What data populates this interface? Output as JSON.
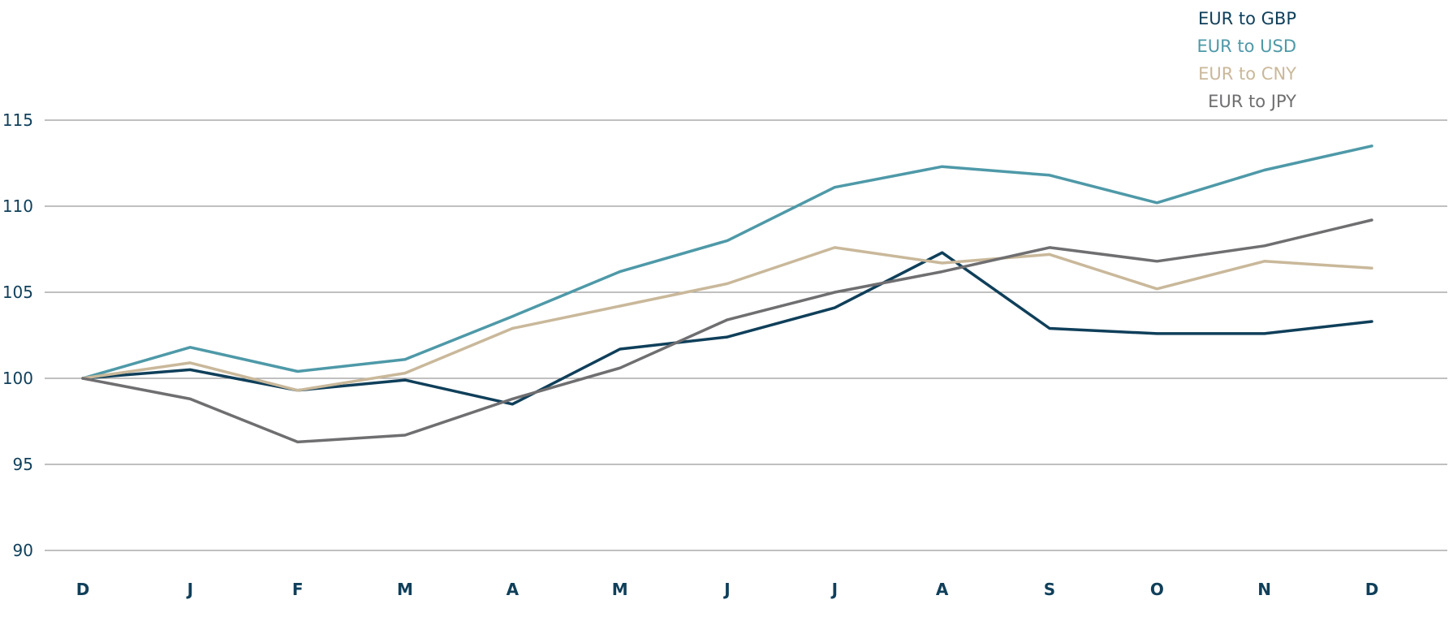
{
  "chart_data": {
    "type": "line",
    "categories": [
      "D",
      "J",
      "F",
      "M",
      "A",
      "M",
      "J",
      "J",
      "A",
      "S",
      "O",
      "N",
      "D"
    ],
    "ylim": [
      90,
      115
    ],
    "yticks": [
      "90",
      "95",
      "100",
      "105",
      "110",
      "115"
    ],
    "grid": "horizontal",
    "legend_position": "top-right",
    "series": [
      {
        "name": "EUR to GBP",
        "color": "#0f3f5a",
        "values": [
          100,
          100.5,
          99.3,
          99.9,
          98.5,
          101.7,
          102.4,
          104.1,
          107.3,
          102.9,
          102.6,
          102.6,
          103.3
        ]
      },
      {
        "name": "EUR to USD",
        "color": "#4e99a8",
        "values": [
          100,
          101.8,
          100.4,
          101.1,
          103.6,
          106.2,
          108.0,
          111.1,
          112.3,
          111.8,
          110.2,
          112.1,
          113.5
        ]
      },
      {
        "name": "EUR to CNY",
        "color": "#c9b89a",
        "values": [
          100,
          100.9,
          99.3,
          100.3,
          102.9,
          104.2,
          105.5,
          107.6,
          106.7,
          107.2,
          105.2,
          106.8,
          106.4
        ]
      },
      {
        "name": "EUR to JPY",
        "color": "#6f6e70",
        "values": [
          100,
          98.8,
          96.3,
          96.7,
          98.8,
          100.6,
          103.4,
          105.0,
          106.2,
          107.6,
          106.8,
          107.7,
          109.2
        ]
      }
    ]
  }
}
